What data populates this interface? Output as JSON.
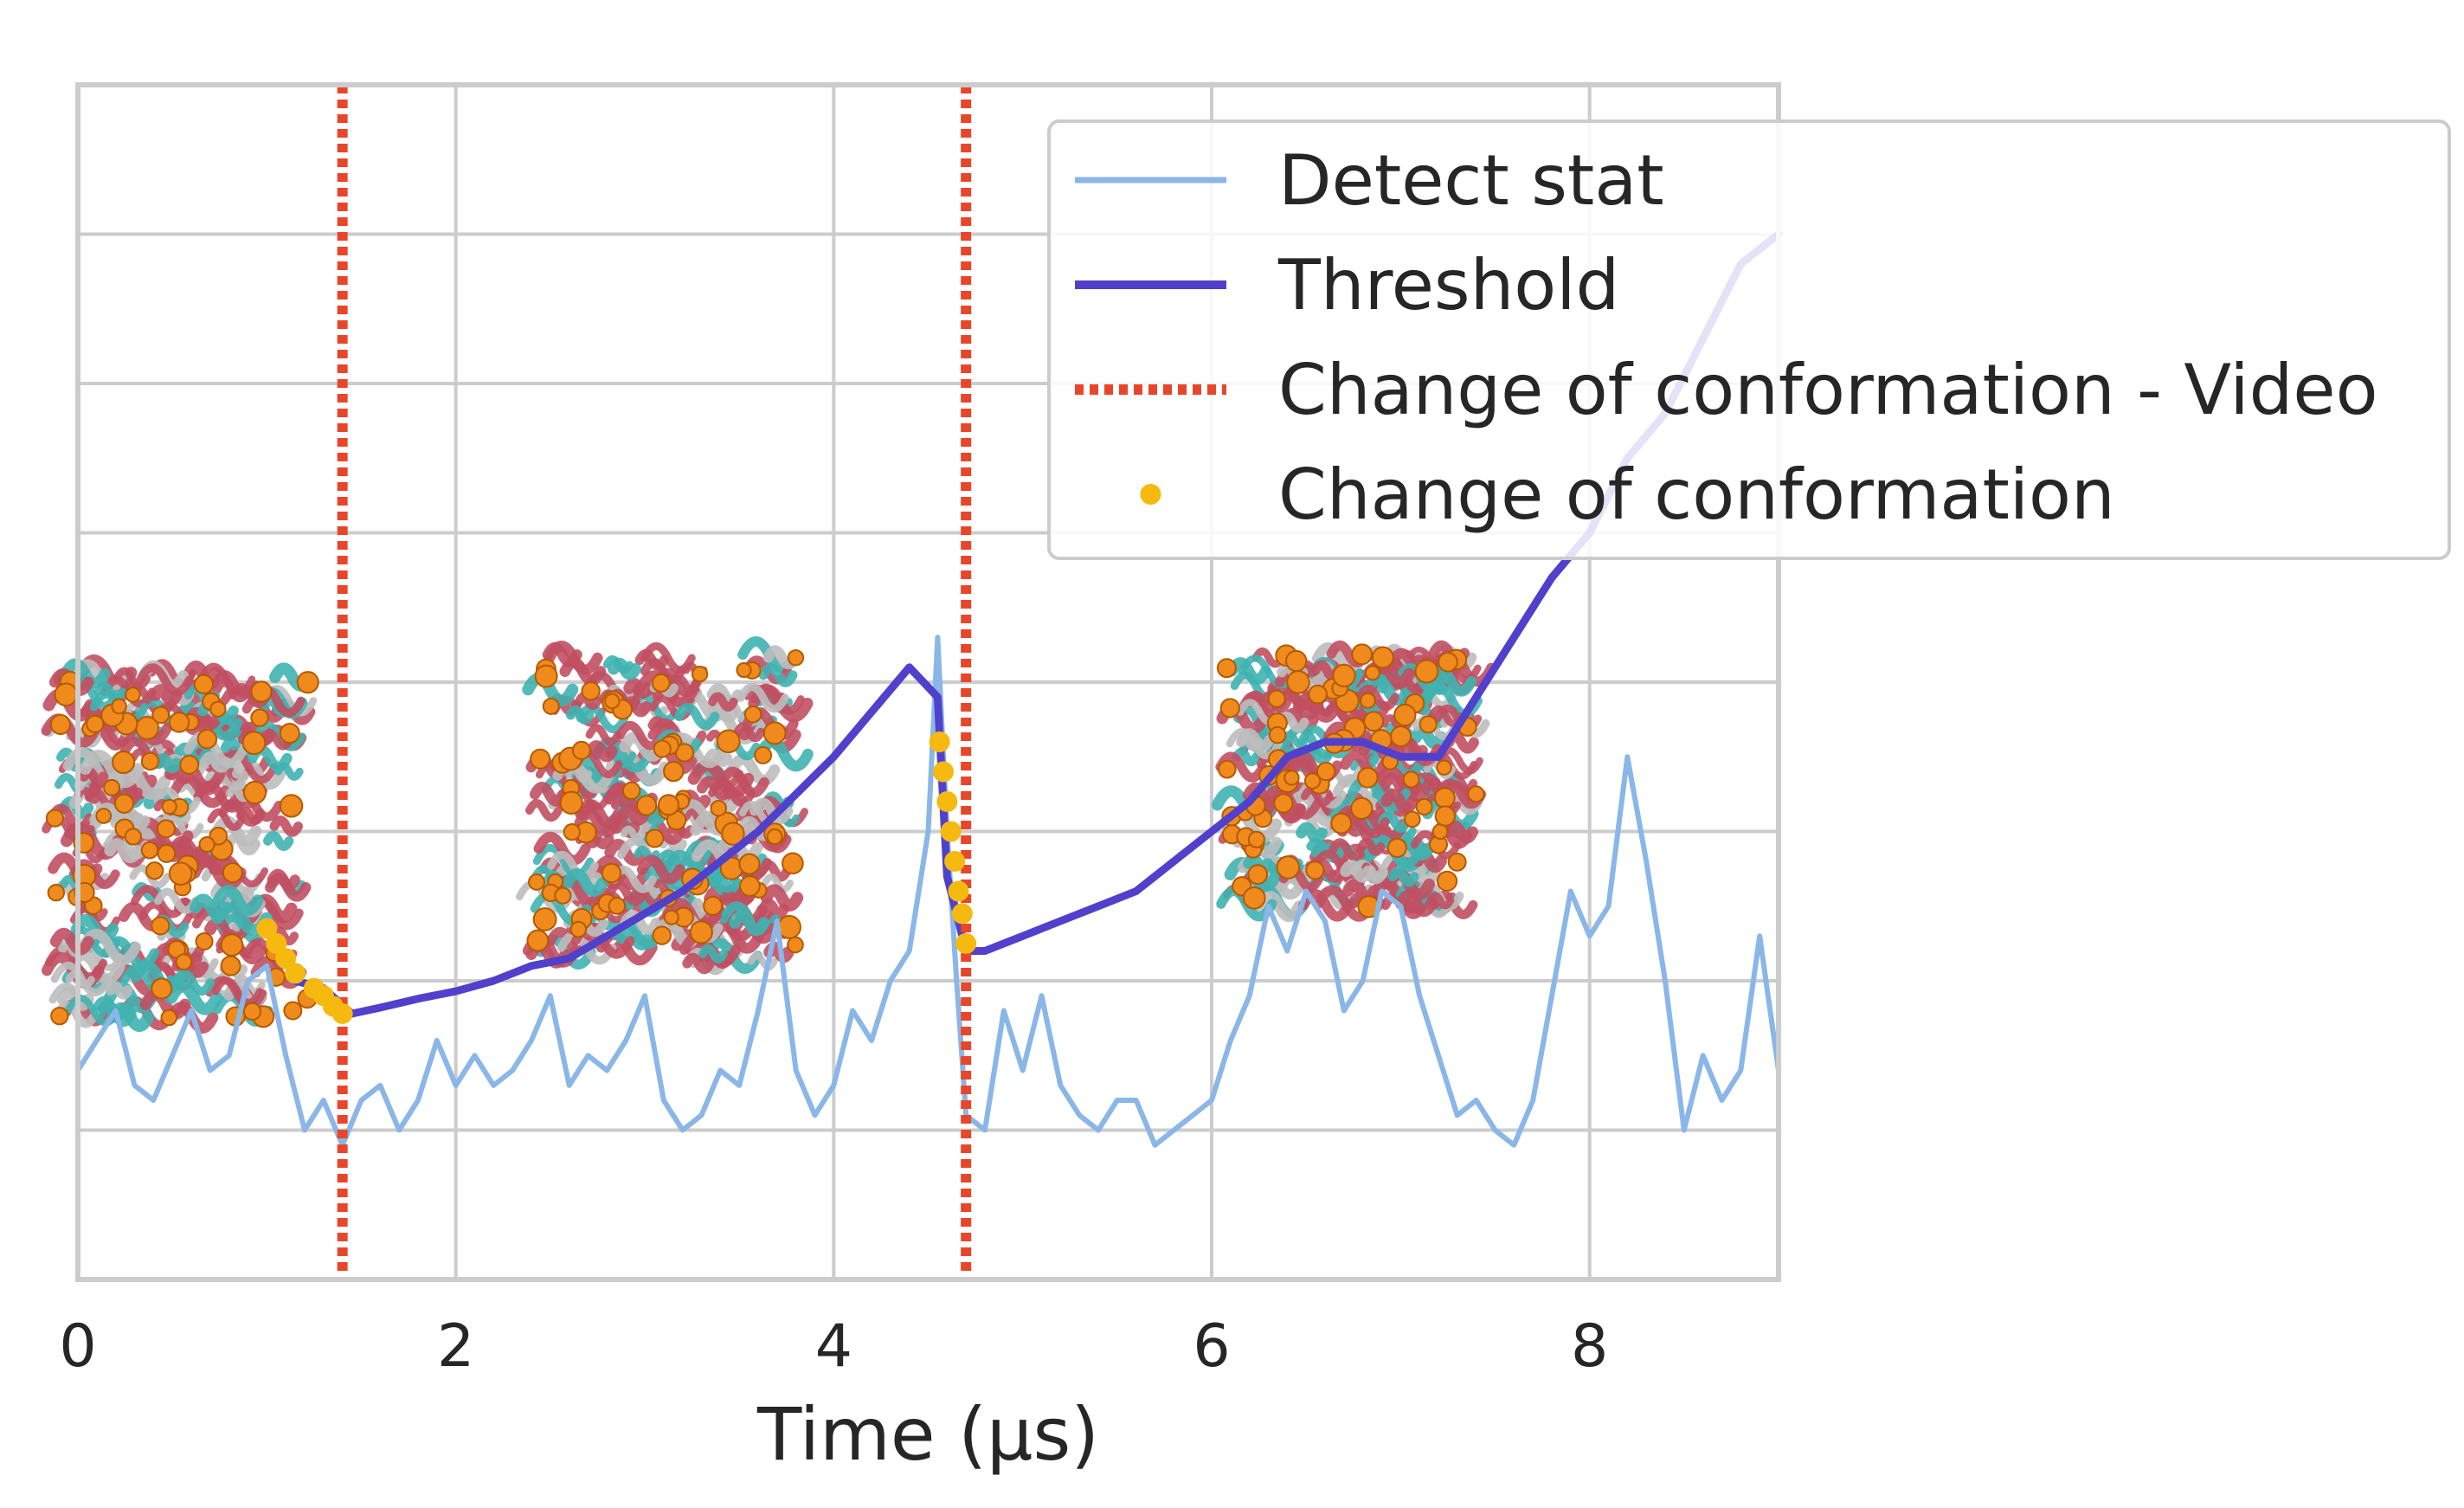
{
  "chart_data": {
    "type": "line",
    "title": "",
    "xlabel": "Time (μs)",
    "ylabel": "",
    "xlim": [
      0,
      9
    ],
    "ylim": [
      0,
      8
    ],
    "grid": true,
    "xticks": [
      0,
      2,
      4,
      6,
      8
    ],
    "xtick_labels": [
      "0",
      "2",
      "4",
      "6",
      "8"
    ],
    "yticks": [
      1,
      2,
      3,
      4,
      5,
      6,
      7,
      8
    ],
    "legend_position": "top-right",
    "colors": {
      "detect": "#8ab6e8",
      "threshold": "#5040cc",
      "video_change": "#e8462a",
      "change": "#f5b90f",
      "grid": "#cccccc",
      "protein_red": "#c14f62",
      "protein_teal": "#3fb3b0",
      "protein_orange": "#f08a1c",
      "protein_gray": "#bdbdbd"
    },
    "legend": [
      {
        "key": "detect",
        "label": "Detect stat"
      },
      {
        "key": "threshold",
        "label": "Threshold"
      },
      {
        "key": "video",
        "label": "Change of conformation - Video"
      },
      {
        "key": "change",
        "label": "Change of conformation"
      }
    ],
    "series": [
      {
        "name": "Detect stat",
        "style": "line",
        "x": [
          0.0,
          0.1,
          0.2,
          0.3,
          0.4,
          0.5,
          0.6,
          0.7,
          0.8,
          0.9,
          1.0,
          1.1,
          1.2,
          1.3,
          1.4,
          1.5,
          1.6,
          1.7,
          1.8,
          1.9,
          2.0,
          2.1,
          2.2,
          2.3,
          2.4,
          2.5,
          2.6,
          2.7,
          2.8,
          2.9,
          3.0,
          3.1,
          3.2,
          3.3,
          3.4,
          3.5,
          3.6,
          3.7,
          3.8,
          3.9,
          4.0,
          4.1,
          4.2,
          4.3,
          4.4,
          4.5,
          4.55,
          4.6,
          4.65,
          4.7,
          4.8,
          4.9,
          5.0,
          5.1,
          5.2,
          5.3,
          5.4,
          5.5,
          5.6,
          5.7,
          5.8,
          5.9,
          6.0,
          6.1,
          6.2,
          6.3,
          6.4,
          6.5,
          6.6,
          6.7,
          6.8,
          6.9,
          7.0,
          7.1,
          7.2,
          7.3,
          7.4,
          7.5,
          7.6,
          7.7,
          7.8,
          7.9,
          8.0,
          8.1,
          8.2,
          8.3,
          8.4,
          8.5,
          8.6,
          8.7,
          8.8,
          8.9,
          9.0
        ],
        "y": [
          1.4,
          1.6,
          1.8,
          1.3,
          1.2,
          1.5,
          1.8,
          1.4,
          1.5,
          2.0,
          2.1,
          1.5,
          1.0,
          1.2,
          0.9,
          1.2,
          1.3,
          1.0,
          1.2,
          1.6,
          1.3,
          1.5,
          1.3,
          1.4,
          1.6,
          1.9,
          1.3,
          1.5,
          1.4,
          1.6,
          1.9,
          1.2,
          1.0,
          1.1,
          1.4,
          1.3,
          1.8,
          2.4,
          1.4,
          1.1,
          1.3,
          1.8,
          1.6,
          2.0,
          2.2,
          3.0,
          4.3,
          3.0,
          2.0,
          1.1,
          1.0,
          1.8,
          1.4,
          1.9,
          1.3,
          1.1,
          1.0,
          1.2,
          1.2,
          0.9,
          1.0,
          1.1,
          1.2,
          1.6,
          1.9,
          2.5,
          2.2,
          2.6,
          2.4,
          1.8,
          2.0,
          2.6,
          2.5,
          1.9,
          1.5,
          1.1,
          1.2,
          1.0,
          0.9,
          1.2,
          1.9,
          2.6,
          2.3,
          2.5,
          3.5,
          2.8,
          2.0,
          1.0,
          1.5,
          1.2,
          1.4,
          2.3,
          1.4
        ]
      },
      {
        "name": "Threshold",
        "style": "line",
        "x": [
          1.15,
          1.3,
          1.45,
          1.6,
          1.8,
          2.0,
          2.2,
          2.4,
          2.6,
          2.8,
          3.0,
          3.2,
          3.4,
          3.6,
          3.8,
          4.0,
          4.2,
          4.4,
          4.55,
          4.6,
          4.7,
          4.8,
          5.0,
          5.2,
          5.4,
          5.6,
          5.8,
          6.0,
          6.2,
          6.4,
          6.6,
          6.8,
          7.0,
          7.2,
          7.4,
          7.6,
          7.8,
          8.0,
          8.2,
          8.4,
          8.6,
          8.8,
          9.0
        ],
        "y": [
          2.0,
          1.95,
          1.78,
          1.82,
          1.88,
          1.93,
          2.0,
          2.1,
          2.15,
          2.3,
          2.45,
          2.6,
          2.8,
          3.0,
          3.25,
          3.5,
          3.8,
          4.1,
          3.9,
          2.7,
          2.2,
          2.2,
          2.3,
          2.4,
          2.5,
          2.6,
          2.8,
          3.0,
          3.2,
          3.5,
          3.6,
          3.6,
          3.5,
          3.5,
          3.9,
          4.3,
          4.7,
          5.0,
          5.5,
          5.8,
          6.3,
          6.8,
          7.0
        ]
      },
      {
        "name": "Change of conformation - Video",
        "style": "vline",
        "x": [
          1.4,
          4.7
        ]
      },
      {
        "name": "Change of conformation",
        "style": "points",
        "x": [
          1.0,
          1.05,
          1.1,
          1.15,
          1.25,
          1.3,
          1.35,
          1.4,
          4.56,
          4.58,
          4.6,
          4.62,
          4.64,
          4.66,
          4.68,
          4.7
        ],
        "y": [
          2.35,
          2.25,
          2.15,
          2.05,
          1.95,
          1.9,
          1.83,
          1.78,
          3.6,
          3.4,
          3.2,
          3.0,
          2.8,
          2.6,
          2.45,
          2.25
        ]
      }
    ],
    "insets": [
      {
        "name": "protein-structure-1",
        "x_range": [
          -0.2,
          1.3
        ],
        "y_range": [
          1.6,
          4.2
        ]
      },
      {
        "name": "protein-structure-2",
        "x_range": [
          2.3,
          3.9
        ],
        "y_range": [
          2.0,
          4.3
        ]
      },
      {
        "name": "protein-structure-3",
        "x_range": [
          6.0,
          7.5
        ],
        "y_range": [
          2.4,
          4.3
        ]
      }
    ]
  }
}
